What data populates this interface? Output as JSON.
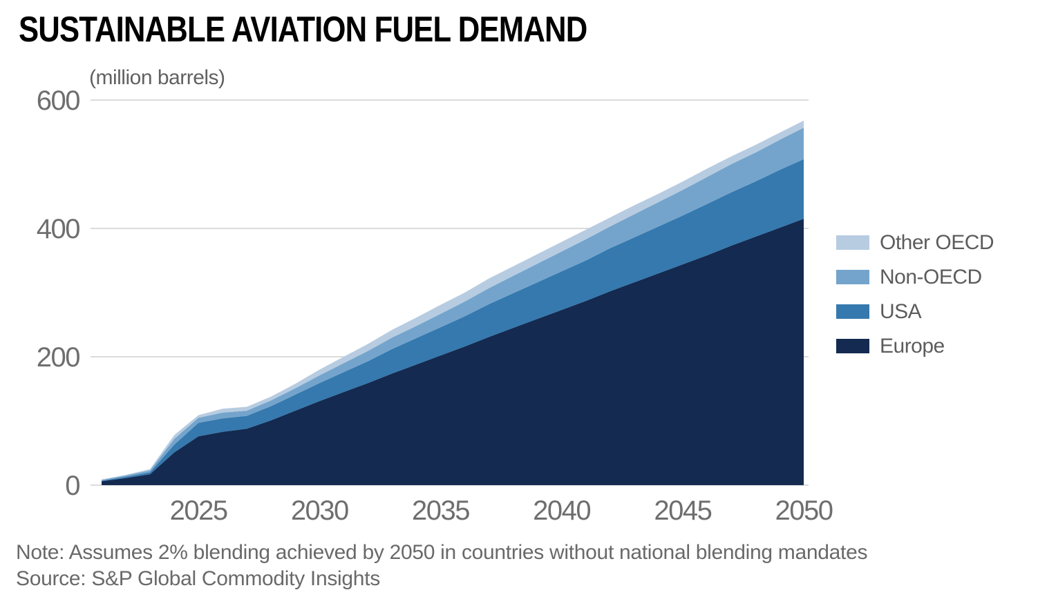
{
  "title": "SUSTAINABLE AVIATION FUEL DEMAND",
  "note": "Note: Assumes 2% blending achieved by 2050 in countries without national blending mandates",
  "source": "Source: S&P Global Commodity Insights",
  "colors": {
    "grid": "#DBDBDB",
    "axis_text": "#6E6E6E",
    "note_text": "#696969",
    "title_text": "#000000"
  },
  "chart_data": {
    "type": "area",
    "stacked": true,
    "title": "SUSTAINABLE AVIATION FUEL DEMAND",
    "xlabel": "",
    "ylabel": "(million barrels)",
    "grid": true,
    "legend_position": "right",
    "ylim": [
      0,
      600
    ],
    "xlim": [
      2021,
      2050
    ],
    "yticks": [
      0,
      200,
      400,
      600
    ],
    "xticks": [
      2025,
      2030,
      2035,
      2040,
      2045,
      2050
    ],
    "x": [
      2021,
      2022,
      2023,
      2024,
      2025,
      2026,
      2027,
      2028,
      2029,
      2030,
      2031,
      2032,
      2033,
      2034,
      2035,
      2036,
      2037,
      2038,
      2039,
      2040,
      2041,
      2042,
      2043,
      2044,
      2045,
      2046,
      2047,
      2048,
      2049,
      2050
    ],
    "series": [
      {
        "name": "Europe",
        "color": "#142A50",
        "values": [
          6,
          11,
          17,
          51,
          76,
          83,
          88,
          101,
          116,
          131,
          145,
          159,
          174,
          188,
          202,
          216,
          231,
          245,
          259,
          273,
          287,
          302,
          316,
          330,
          344,
          358,
          373,
          387,
          401,
          415
        ]
      },
      {
        "name": "USA",
        "color": "#3579AE",
        "values": [
          1,
          2,
          3,
          12,
          21,
          21,
          20,
          22,
          25,
          28,
          31,
          34,
          38,
          41,
          44,
          47,
          51,
          54,
          57,
          60,
          63,
          67,
          70,
          73,
          76,
          80,
          83,
          86,
          90,
          93
        ]
      },
      {
        "name": "Non-OECD",
        "color": "#74A4CC",
        "values": [
          1,
          2,
          3,
          9,
          8,
          9,
          8,
          9,
          10,
          12,
          14,
          16,
          18,
          19,
          21,
          23,
          25,
          27,
          29,
          31,
          33,
          34,
          36,
          38,
          40,
          42,
          44,
          45,
          47,
          49
        ]
      },
      {
        "name": "Other OECD",
        "color": "#B7CCE1",
        "values": [
          1,
          1,
          2,
          6,
          4,
          6,
          6,
          6,
          7,
          9,
          10,
          11,
          12,
          13,
          14,
          14,
          15,
          15,
          15,
          15,
          15,
          14,
          14,
          13,
          13,
          13,
          12,
          12,
          11,
          11
        ]
      }
    ],
    "totals_by_year_hint": "total reaches ~109 in 2025, ~180 in 2030, ~380 in 2040, ~568 in 2050",
    "legend": [
      {
        "label": "Other OECD",
        "color": "#B7CCE1"
      },
      {
        "label": "Non-OECD",
        "color": "#74A4CC"
      },
      {
        "label": "USA",
        "color": "#3579AE"
      },
      {
        "label": "Europe",
        "color": "#142A50"
      }
    ]
  }
}
